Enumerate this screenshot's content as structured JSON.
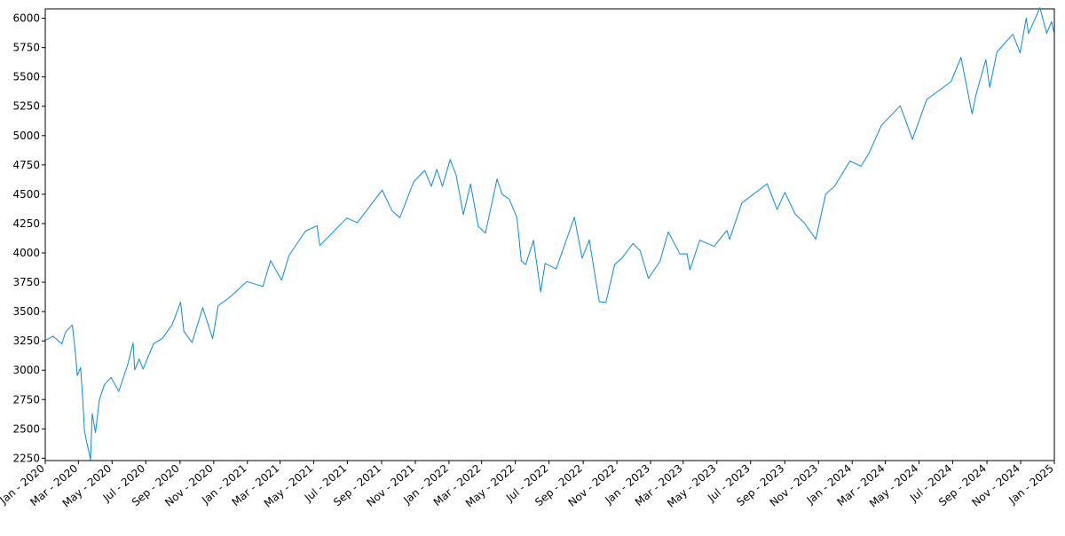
{
  "chart_data": {
    "type": "line",
    "title": "",
    "xlabel": "",
    "ylabel": "",
    "grid": false,
    "legend": "none",
    "series_color": "#0a8ad6",
    "xlim": [
      "2020-01-01",
      "2025-01-01"
    ],
    "ylim": [
      2230,
      6080
    ],
    "y_ticks": [
      2250,
      2500,
      2750,
      3000,
      3250,
      3500,
      3750,
      4000,
      4250,
      4500,
      4750,
      5000,
      5250,
      5500,
      5750,
      6000
    ],
    "x_ticks": [
      {
        "date": "2020-01-01",
        "label": "Jan - 2020"
      },
      {
        "date": "2020-03-01",
        "label": "Mar - 2020"
      },
      {
        "date": "2020-05-01",
        "label": "May - 2020"
      },
      {
        "date": "2020-07-01",
        "label": "Jul - 2020"
      },
      {
        "date": "2020-09-01",
        "label": "Sep - 2020"
      },
      {
        "date": "2020-11-01",
        "label": "Nov - 2020"
      },
      {
        "date": "2021-01-01",
        "label": "Jan - 2021"
      },
      {
        "date": "2021-03-01",
        "label": "Mar - 2021"
      },
      {
        "date": "2021-05-01",
        "label": "May - 2021"
      },
      {
        "date": "2021-07-01",
        "label": "Jul - 2021"
      },
      {
        "date": "2021-09-01",
        "label": "Sep - 2021"
      },
      {
        "date": "2021-11-01",
        "label": "Nov - 2021"
      },
      {
        "date": "2022-01-01",
        "label": "Jan - 2022"
      },
      {
        "date": "2022-03-01",
        "label": "Mar - 2022"
      },
      {
        "date": "2022-05-01",
        "label": "May - 2022"
      },
      {
        "date": "2022-07-01",
        "label": "Jul - 2022"
      },
      {
        "date": "2022-09-01",
        "label": "Sep - 2022"
      },
      {
        "date": "2022-11-01",
        "label": "Nov - 2022"
      },
      {
        "date": "2023-01-01",
        "label": "Jan - 2023"
      },
      {
        "date": "2023-03-01",
        "label": "Mar - 2023"
      },
      {
        "date": "2023-05-01",
        "label": "May - 2023"
      },
      {
        "date": "2023-07-01",
        "label": "Jul - 2023"
      },
      {
        "date": "2023-09-01",
        "label": "Sep - 2023"
      },
      {
        "date": "2023-11-01",
        "label": "Nov - 2023"
      },
      {
        "date": "2024-01-01",
        "label": "Jan - 2024"
      },
      {
        "date": "2024-03-01",
        "label": "Mar - 2024"
      },
      {
        "date": "2024-05-01",
        "label": "May - 2024"
      },
      {
        "date": "2024-07-01",
        "label": "Jul - 2024"
      },
      {
        "date": "2024-09-01",
        "label": "Sep - 2024"
      },
      {
        "date": "2024-11-01",
        "label": "Nov - 2024"
      },
      {
        "date": "2025-01-01",
        "label": "Jan - 2025"
      }
    ],
    "series": [
      {
        "x": [
          "2020-01-02",
          "2020-01-15",
          "2020-01-31",
          "2020-02-07",
          "2020-02-19",
          "2020-02-25",
          "2020-02-28",
          "2020-03-05",
          "2020-03-09",
          "2020-03-12",
          "2020-03-16",
          "2020-03-20",
          "2020-03-23",
          "2020-03-26",
          "2020-04-01",
          "2020-04-08",
          "2020-04-17",
          "2020-04-29",
          "2020-05-13",
          "2020-05-29",
          "2020-06-08",
          "2020-06-11",
          "2020-06-19",
          "2020-06-26",
          "2020-07-15",
          "2020-07-31",
          "2020-08-18",
          "2020-09-02",
          "2020-09-08",
          "2020-09-23",
          "2020-10-12",
          "2020-10-30",
          "2020-11-09",
          "2020-11-30",
          "2020-12-31",
          "2021-01-29",
          "2021-02-12",
          "2021-03-04",
          "2021-03-17",
          "2021-04-16",
          "2021-05-07",
          "2021-05-12",
          "2021-06-30",
          "2021-07-19",
          "2021-08-31",
          "2021-09-02",
          "2021-09-20",
          "2021-10-04",
          "2021-10-29",
          "2021-11-18",
          "2021-11-30",
          "2021-12-10",
          "2021-12-20",
          "2022-01-03",
          "2022-01-14",
          "2022-01-27",
          "2022-02-09",
          "2022-02-23",
          "2022-03-08",
          "2022-03-29",
          "2022-04-07",
          "2022-04-20",
          "2022-05-04",
          "2022-05-12",
          "2022-05-20",
          "2022-06-03",
          "2022-06-16",
          "2022-06-24",
          "2022-07-14",
          "2022-08-16",
          "2022-08-30",
          "2022-09-12",
          "2022-09-30",
          "2022-10-12",
          "2022-10-28",
          "2022-11-10",
          "2022-11-30",
          "2022-12-13",
          "2022-12-28",
          "2023-01-18",
          "2023-02-02",
          "2023-02-23",
          "2023-03-08",
          "2023-03-13",
          "2023-03-31",
          "2023-04-26",
          "2023-05-19",
          "2023-05-24",
          "2023-06-15",
          "2023-07-31",
          "2023-08-18",
          "2023-09-01",
          "2023-09-20",
          "2023-10-06",
          "2023-10-27",
          "2023-11-14",
          "2023-11-30",
          "2023-12-28",
          "2024-01-17",
          "2024-01-31",
          "2024-02-23",
          "2024-03-28",
          "2024-04-19",
          "2024-05-15",
          "2024-06-28",
          "2024-07-16",
          "2024-08-05",
          "2024-08-12",
          "2024-08-30",
          "2024-09-06",
          "2024-09-19",
          "2024-10-18",
          "2024-10-31",
          "2024-11-11",
          "2024-11-15",
          "2024-12-06",
          "2024-12-18",
          "2024-12-27",
          "2024-12-31"
        ],
        "values": [
          3257,
          3290,
          3225,
          3327,
          3386,
          3128,
          2954,
          3023,
          2746,
          2480,
          2386,
          2304,
          2237,
          2630,
          2470,
          2750,
          2875,
          2939,
          2820,
          3044,
          3232,
          3002,
          3097,
          3009,
          3226,
          3271,
          3390,
          3580,
          3331,
          3237,
          3534,
          3270,
          3550,
          3622,
          3756,
          3714,
          3934,
          3768,
          3974,
          4185,
          4232,
          4063,
          4297,
          4258,
          4523,
          4537,
          4358,
          4300,
          4605,
          4704,
          4567,
          4712,
          4568,
          4796,
          4662,
          4326,
          4587,
          4225,
          4170,
          4631,
          4500,
          4459,
          4300,
          3930,
          3901,
          4108,
          3667,
          3911,
          3863,
          4305,
          3955,
          4110,
          3585,
          3577,
          3901,
          3956,
          4080,
          4019,
          3783,
          3929,
          4179,
          3991,
          3992,
          3855,
          4109,
          4055,
          4191,
          4115,
          4425,
          4589,
          4370,
          4516,
          4330,
          4258,
          4117,
          4502,
          4567,
          4783,
          4739,
          4846,
          5088,
          5254,
          4967,
          5308,
          5460,
          5667,
          5186,
          5344,
          5648,
          5409,
          5713,
          5864,
          5705,
          6001,
          5870,
          6090,
          5872,
          5970,
          5882
        ]
      }
    ]
  }
}
